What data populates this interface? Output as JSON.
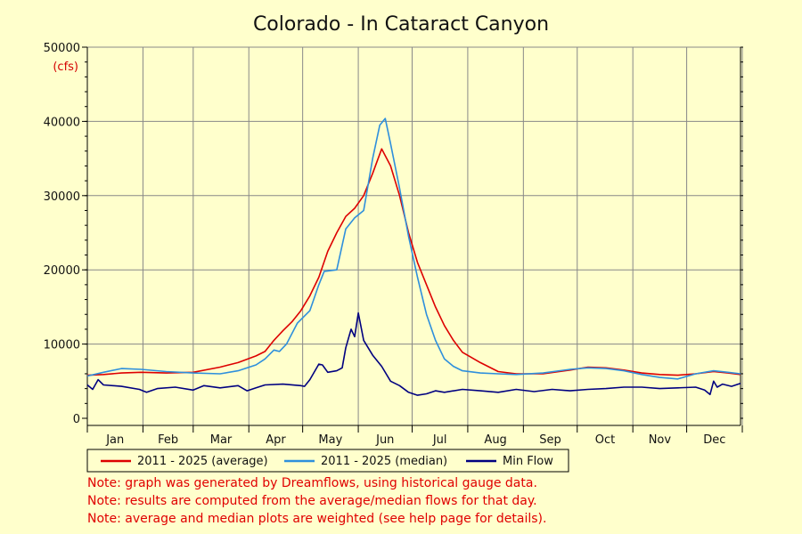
{
  "chart_data": {
    "type": "line",
    "title": "Colorado - In Cataract Canyon",
    "ylabel": "(cfs)",
    "xlabel": "",
    "ylim": [
      0,
      50000
    ],
    "yticks": [
      "0",
      "10000",
      "20000",
      "30000",
      "40000",
      "50000"
    ],
    "months": [
      "Jan",
      "Feb",
      "Mar",
      "Apr",
      "May",
      "Jun",
      "Jul",
      "Aug",
      "Sep",
      "Oct",
      "Nov",
      "Dec"
    ],
    "grid": true,
    "legend_position": "bottom",
    "series": [
      {
        "name": "2011 - 2025 (average)",
        "color": "#dd0000",
        "points": [
          [
            1,
            5800
          ],
          [
            10,
            5900
          ],
          [
            20,
            6100
          ],
          [
            31,
            6200
          ],
          [
            45,
            6100
          ],
          [
            60,
            6200
          ],
          [
            75,
            6900
          ],
          [
            85,
            7500
          ],
          [
            95,
            8400
          ],
          [
            100,
            9000
          ],
          [
            105,
            10500
          ],
          [
            110,
            11800
          ],
          [
            115,
            13000
          ],
          [
            120,
            14500
          ],
          [
            125,
            16500
          ],
          [
            130,
            19000
          ],
          [
            135,
            22500
          ],
          [
            140,
            25000
          ],
          [
            145,
            27200
          ],
          [
            150,
            28300
          ],
          [
            155,
            30000
          ],
          [
            160,
            33000
          ],
          [
            165,
            36300
          ],
          [
            170,
            34000
          ],
          [
            175,
            30000
          ],
          [
            180,
            25000
          ],
          [
            185,
            21000
          ],
          [
            190,
            18000
          ],
          [
            195,
            15000
          ],
          [
            200,
            12500
          ],
          [
            205,
            10500
          ],
          [
            210,
            8900
          ],
          [
            215,
            8200
          ],
          [
            220,
            7500
          ],
          [
            230,
            6300
          ],
          [
            240,
            6000
          ],
          [
            255,
            6000
          ],
          [
            270,
            6500
          ],
          [
            280,
            6900
          ],
          [
            290,
            6800
          ],
          [
            300,
            6500
          ],
          [
            310,
            6100
          ],
          [
            320,
            5900
          ],
          [
            330,
            5800
          ],
          [
            340,
            6000
          ],
          [
            350,
            6300
          ],
          [
            358,
            6100
          ],
          [
            365,
            5900
          ]
        ]
      },
      {
        "name": "2011 - 2025 (median)",
        "color": "#2e8fdc",
        "points": [
          [
            1,
            5700
          ],
          [
            10,
            6200
          ],
          [
            20,
            6700
          ],
          [
            31,
            6600
          ],
          [
            45,
            6300
          ],
          [
            60,
            6100
          ],
          [
            75,
            6000
          ],
          [
            85,
            6400
          ],
          [
            95,
            7200
          ],
          [
            100,
            8000
          ],
          [
            105,
            9200
          ],
          [
            108,
            9000
          ],
          [
            112,
            10000
          ],
          [
            118,
            12800
          ],
          [
            125,
            14500
          ],
          [
            130,
            18000
          ],
          [
            133,
            19800
          ],
          [
            140,
            20000
          ],
          [
            145,
            25500
          ],
          [
            150,
            27000
          ],
          [
            155,
            28000
          ],
          [
            160,
            35000
          ],
          [
            164,
            39500
          ],
          [
            167,
            40400
          ],
          [
            170,
            37000
          ],
          [
            175,
            31000
          ],
          [
            180,
            24500
          ],
          [
            185,
            19000
          ],
          [
            190,
            14000
          ],
          [
            195,
            10500
          ],
          [
            200,
            8000
          ],
          [
            205,
            7000
          ],
          [
            210,
            6400
          ],
          [
            220,
            6100
          ],
          [
            230,
            6000
          ],
          [
            240,
            5900
          ],
          [
            255,
            6100
          ],
          [
            270,
            6600
          ],
          [
            280,
            6800
          ],
          [
            290,
            6700
          ],
          [
            300,
            6400
          ],
          [
            310,
            5900
          ],
          [
            320,
            5500
          ],
          [
            330,
            5300
          ],
          [
            340,
            6000
          ],
          [
            350,
            6400
          ],
          [
            358,
            6200
          ],
          [
            365,
            6000
          ]
        ]
      },
      {
        "name": "Min Flow",
        "color": "#000080",
        "points": [
          [
            1,
            4500
          ],
          [
            4,
            3900
          ],
          [
            7,
            5200
          ],
          [
            10,
            4500
          ],
          [
            20,
            4300
          ],
          [
            30,
            3900
          ],
          [
            34,
            3500
          ],
          [
            40,
            4000
          ],
          [
            50,
            4200
          ],
          [
            60,
            3800
          ],
          [
            66,
            4400
          ],
          [
            75,
            4100
          ],
          [
            85,
            4400
          ],
          [
            90,
            3700
          ],
          [
            95,
            4100
          ],
          [
            100,
            4500
          ],
          [
            110,
            4600
          ],
          [
            120,
            4400
          ],
          [
            122,
            4300
          ],
          [
            125,
            5200
          ],
          [
            130,
            7300
          ],
          [
            132,
            7200
          ],
          [
            135,
            6200
          ],
          [
            140,
            6400
          ],
          [
            143,
            6800
          ],
          [
            145,
            9500
          ],
          [
            148,
            12000
          ],
          [
            150,
            11000
          ],
          [
            152,
            14200
          ],
          [
            155,
            10500
          ],
          [
            160,
            8500
          ],
          [
            165,
            7000
          ],
          [
            170,
            5000
          ],
          [
            175,
            4400
          ],
          [
            180,
            3500
          ],
          [
            185,
            3100
          ],
          [
            190,
            3300
          ],
          [
            195,
            3700
          ],
          [
            200,
            3500
          ],
          [
            210,
            3900
          ],
          [
            220,
            3700
          ],
          [
            230,
            3500
          ],
          [
            240,
            3900
          ],
          [
            250,
            3600
          ],
          [
            260,
            3900
          ],
          [
            270,
            3700
          ],
          [
            280,
            3900
          ],
          [
            290,
            4000
          ],
          [
            300,
            4200
          ],
          [
            310,
            4200
          ],
          [
            320,
            4000
          ],
          [
            330,
            4100
          ],
          [
            340,
            4200
          ],
          [
            345,
            3800
          ],
          [
            348,
            3200
          ],
          [
            350,
            5000
          ],
          [
            352,
            4200
          ],
          [
            355,
            4600
          ],
          [
            360,
            4300
          ],
          [
            365,
            4700
          ]
        ]
      }
    ]
  },
  "notes": [
    "Note: graph was generated by Dreamflows, using historical gauge data.",
    "Note: results are computed from the average/median flows for that day.",
    "Note: average and median plots are weighted (see help page for details)."
  ]
}
